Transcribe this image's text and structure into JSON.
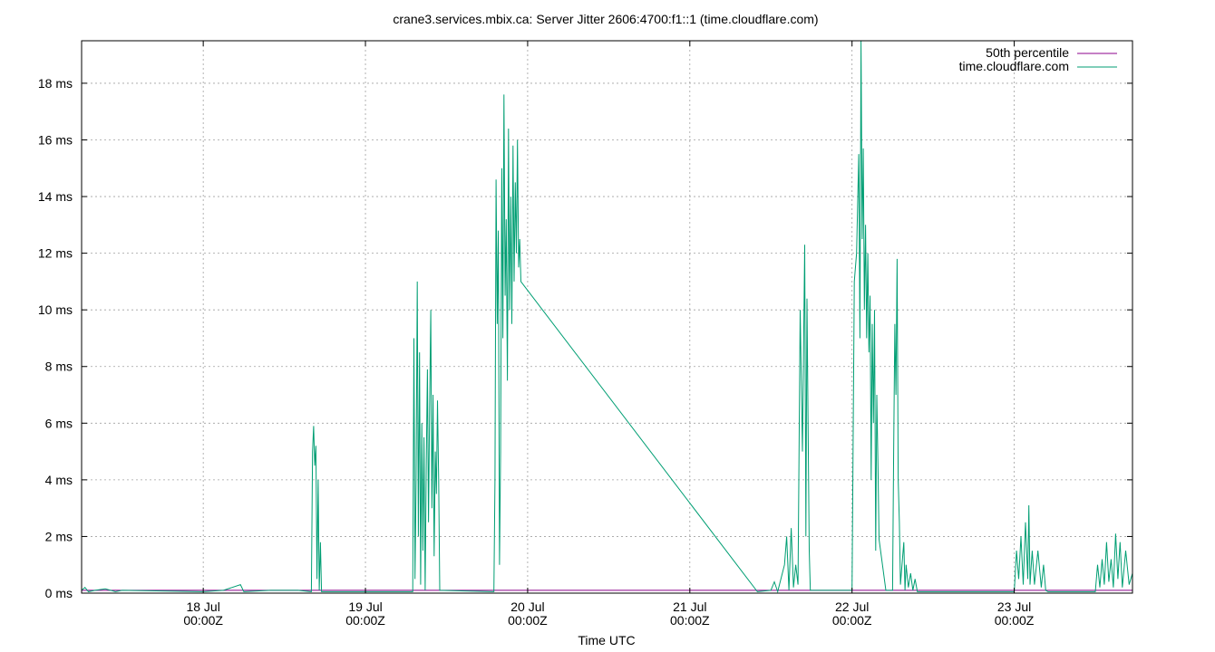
{
  "chart_data": {
    "type": "line",
    "title": "crane3.services.mbix.ca: Server Jitter 2606:4700:f1::1 (time.cloudflare.com)",
    "xlabel": "Time UTC",
    "ylabel": "",
    "y_unit": "ms",
    "ylim": [
      0,
      19.5
    ],
    "xlim": [
      "2024-07-17T06:00Z",
      "2024-07-23T17:30Z"
    ],
    "y_ticks": [
      {
        "value": 0,
        "label": "0 ms"
      },
      {
        "value": 2,
        "label": "2 ms"
      },
      {
        "value": 4,
        "label": "4 ms"
      },
      {
        "value": 6,
        "label": "6 ms"
      },
      {
        "value": 8,
        "label": "8 ms"
      },
      {
        "value": 10,
        "label": "10 ms"
      },
      {
        "value": 12,
        "label": "12 ms"
      },
      {
        "value": 14,
        "label": "14 ms"
      },
      {
        "value": 16,
        "label": "16 ms"
      },
      {
        "value": 18,
        "label": "18 ms"
      }
    ],
    "x_ticks": [
      {
        "value": "2024-07-18T00:00Z",
        "line1": "18 Jul",
        "line2": "00:00Z"
      },
      {
        "value": "2024-07-19T00:00Z",
        "line1": "19 Jul",
        "line2": "00:00Z"
      },
      {
        "value": "2024-07-20T00:00Z",
        "line1": "20 Jul",
        "line2": "00:00Z"
      },
      {
        "value": "2024-07-21T00:00Z",
        "line1": "21 Jul",
        "line2": "00:00Z"
      },
      {
        "value": "2024-07-22T00:00Z",
        "line1": "22 Jul",
        "line2": "00:00Z"
      },
      {
        "value": "2024-07-23T00:00Z",
        "line1": "23 Jul",
        "line2": "00:00Z"
      }
    ],
    "grid": true,
    "legend_position": "top-right",
    "series": [
      {
        "name": "50th percentile",
        "color": "#8b008b",
        "points": [
          [
            "2024-07-17T06:00Z",
            0.1
          ],
          [
            "2024-07-23T17:30Z",
            0.1
          ]
        ]
      },
      {
        "name": "time.cloudflare.com",
        "color": "#009e73",
        "points": [
          [
            "2024-07-17T06:00Z",
            0.1
          ],
          [
            "2024-07-17T06:30Z",
            0.2
          ],
          [
            "2024-07-17T07:00Z",
            0.05
          ],
          [
            "2024-07-17T08:00Z",
            0.1
          ],
          [
            "2024-07-17T09:30Z",
            0.15
          ],
          [
            "2024-07-17T11:00Z",
            0.05
          ],
          [
            "2024-07-17T12:00Z",
            0.1
          ],
          [
            "2024-07-18T00:00Z",
            0.05
          ],
          [
            "2024-07-18T03:00Z",
            0.1
          ],
          [
            "2024-07-18T05:30Z",
            0.3
          ],
          [
            "2024-07-18T06:00Z",
            0.05
          ],
          [
            "2024-07-18T10:00Z",
            0.1
          ],
          [
            "2024-07-18T14:00Z",
            0.1
          ],
          [
            "2024-07-18T16:00Z",
            0.05
          ],
          [
            "2024-07-18T16:10Z",
            5.0
          ],
          [
            "2024-07-18T16:20Z",
            5.9
          ],
          [
            "2024-07-18T16:30Z",
            4.5
          ],
          [
            "2024-07-18T16:40Z",
            5.2
          ],
          [
            "2024-07-18T16:50Z",
            0.5
          ],
          [
            "2024-07-18T17:00Z",
            4.0
          ],
          [
            "2024-07-18T17:10Z",
            0.1
          ],
          [
            "2024-07-18T17:20Z",
            1.8
          ],
          [
            "2024-07-18T17:30Z",
            0.05
          ],
          [
            "2024-07-19T07:00Z",
            0.05
          ],
          [
            "2024-07-19T07:10Z",
            9.0
          ],
          [
            "2024-07-19T07:20Z",
            0.5
          ],
          [
            "2024-07-19T07:30Z",
            4.0
          ],
          [
            "2024-07-19T07:40Z",
            11.0
          ],
          [
            "2024-07-19T07:50Z",
            2.0
          ],
          [
            "2024-07-19T08:00Z",
            8.5
          ],
          [
            "2024-07-19T08:10Z",
            0.3
          ],
          [
            "2024-07-19T08:20Z",
            6.0
          ],
          [
            "2024-07-19T08:30Z",
            1.5
          ],
          [
            "2024-07-19T08:40Z",
            5.5
          ],
          [
            "2024-07-19T08:50Z",
            0.1
          ],
          [
            "2024-07-19T09:00Z",
            4.5
          ],
          [
            "2024-07-19T09:10Z",
            7.9
          ],
          [
            "2024-07-19T09:20Z",
            2.5
          ],
          [
            "2024-07-19T09:30Z",
            6.5
          ],
          [
            "2024-07-19T09:40Z",
            10.0
          ],
          [
            "2024-07-19T09:50Z",
            3.0
          ],
          [
            "2024-07-19T10:00Z",
            7.0
          ],
          [
            "2024-07-19T10:10Z",
            1.3
          ],
          [
            "2024-07-19T10:20Z",
            5.0
          ],
          [
            "2024-07-19T10:30Z",
            3.5
          ],
          [
            "2024-07-19T10:40Z",
            6.8
          ],
          [
            "2024-07-19T10:50Z",
            4.0
          ],
          [
            "2024-07-19T11:00Z",
            0.1
          ],
          [
            "2024-07-19T19:00Z",
            0.05
          ],
          [
            "2024-07-19T19:10Z",
            4.0
          ],
          [
            "2024-07-19T19:20Z",
            14.6
          ],
          [
            "2024-07-19T19:30Z",
            9.5
          ],
          [
            "2024-07-19T19:40Z",
            12.8
          ],
          [
            "2024-07-19T19:50Z",
            1.0
          ],
          [
            "2024-07-19T20:00Z",
            5.0
          ],
          [
            "2024-07-19T20:10Z",
            15.0
          ],
          [
            "2024-07-19T20:20Z",
            9.0
          ],
          [
            "2024-07-19T20:30Z",
            17.6
          ],
          [
            "2024-07-19T20:40Z",
            10.5
          ],
          [
            "2024-07-19T20:50Z",
            13.2
          ],
          [
            "2024-07-19T21:00Z",
            7.5
          ],
          [
            "2024-07-19T21:10Z",
            16.4
          ],
          [
            "2024-07-19T21:20Z",
            10.0
          ],
          [
            "2024-07-19T21:30Z",
            14.0
          ],
          [
            "2024-07-19T21:40Z",
            9.5
          ],
          [
            "2024-07-19T21:50Z",
            15.8
          ],
          [
            "2024-07-19T22:00Z",
            11.0
          ],
          [
            "2024-07-19T22:10Z",
            14.5
          ],
          [
            "2024-07-19T22:20Z",
            12.0
          ],
          [
            "2024-07-19T22:30Z",
            16.0
          ],
          [
            "2024-07-19T22:40Z",
            11.5
          ],
          [
            "2024-07-19T22:50Z",
            12.5
          ],
          [
            "2024-07-19T23:00Z",
            11.0
          ],
          [
            "2024-07-21T10:00Z",
            0.05
          ],
          [
            "2024-07-21T12:00Z",
            0.1
          ],
          [
            "2024-07-21T12:30Z",
            0.4
          ],
          [
            "2024-07-21T13:00Z",
            0.05
          ],
          [
            "2024-07-21T14:00Z",
            1.0
          ],
          [
            "2024-07-21T14:20Z",
            2.0
          ],
          [
            "2024-07-21T14:40Z",
            0.1
          ],
          [
            "2024-07-21T15:00Z",
            2.3
          ],
          [
            "2024-07-21T15:20Z",
            0.2
          ],
          [
            "2024-07-21T15:40Z",
            1.0
          ],
          [
            "2024-07-21T16:00Z",
            0.3
          ],
          [
            "2024-07-21T16:20Z",
            10.0
          ],
          [
            "2024-07-21T16:40Z",
            5.0
          ],
          [
            "2024-07-21T17:00Z",
            12.3
          ],
          [
            "2024-07-21T17:10Z",
            2.0
          ],
          [
            "2024-07-21T17:20Z",
            10.4
          ],
          [
            "2024-07-21T17:30Z",
            6.0
          ],
          [
            "2024-07-21T17:40Z",
            1.5
          ],
          [
            "2024-07-21T17:50Z",
            0.1
          ],
          [
            "2024-07-22T00:00Z",
            0.1
          ],
          [
            "2024-07-22T00:20Z",
            11.0
          ],
          [
            "2024-07-22T00:40Z",
            12.0
          ],
          [
            "2024-07-22T01:00Z",
            15.5
          ],
          [
            "2024-07-22T01:10Z",
            9.0
          ],
          [
            "2024-07-22T01:20Z",
            19.5
          ],
          [
            "2024-07-22T01:30Z",
            12.5
          ],
          [
            "2024-07-22T01:40Z",
            15.7
          ],
          [
            "2024-07-22T01:50Z",
            10.0
          ],
          [
            "2024-07-22T02:00Z",
            13.0
          ],
          [
            "2024-07-22T02:10Z",
            9.0
          ],
          [
            "2024-07-22T02:20Z",
            12.0
          ],
          [
            "2024-07-22T02:30Z",
            8.5
          ],
          [
            "2024-07-22T02:40Z",
            10.5
          ],
          [
            "2024-07-22T02:50Z",
            4.0
          ],
          [
            "2024-07-22T03:00Z",
            9.5
          ],
          [
            "2024-07-22T03:10Z",
            6.0
          ],
          [
            "2024-07-22T03:20Z",
            10.0
          ],
          [
            "2024-07-22T03:30Z",
            1.5
          ],
          [
            "2024-07-22T03:40Z",
            7.0
          ],
          [
            "2024-07-22T03:50Z",
            4.5
          ],
          [
            "2024-07-22T04:00Z",
            1.9
          ],
          [
            "2024-07-22T05:00Z",
            0.1
          ],
          [
            "2024-07-22T06:00Z",
            0.1
          ],
          [
            "2024-07-22T06:10Z",
            5.0
          ],
          [
            "2024-07-22T06:20Z",
            9.5
          ],
          [
            "2024-07-22T06:30Z",
            7.0
          ],
          [
            "2024-07-22T06:40Z",
            11.8
          ],
          [
            "2024-07-22T06:50Z",
            4.0
          ],
          [
            "2024-07-22T07:00Z",
            2.5
          ],
          [
            "2024-07-22T07:10Z",
            0.3
          ],
          [
            "2024-07-22T07:20Z",
            0.8
          ],
          [
            "2024-07-22T07:40Z",
            1.8
          ],
          [
            "2024-07-22T07:50Z",
            0.1
          ],
          [
            "2024-07-22T08:00Z",
            1.0
          ],
          [
            "2024-07-22T08:20Z",
            0.2
          ],
          [
            "2024-07-22T08:40Z",
            0.7
          ],
          [
            "2024-07-22T09:00Z",
            0.1
          ],
          [
            "2024-07-22T09:20Z",
            0.5
          ],
          [
            "2024-07-22T09:40Z",
            0.05
          ],
          [
            "2024-07-23T00:00Z",
            0.05
          ],
          [
            "2024-07-23T00:20Z",
            1.5
          ],
          [
            "2024-07-23T00:40Z",
            0.5
          ],
          [
            "2024-07-23T01:00Z",
            2.0
          ],
          [
            "2024-07-23T01:20Z",
            0.3
          ],
          [
            "2024-07-23T01:40Z",
            2.5
          ],
          [
            "2024-07-23T02:00Z",
            0.5
          ],
          [
            "2024-07-23T02:10Z",
            3.1
          ],
          [
            "2024-07-23T02:20Z",
            0.3
          ],
          [
            "2024-07-23T02:40Z",
            1.5
          ],
          [
            "2024-07-23T03:00Z",
            0.3
          ],
          [
            "2024-07-23T03:30Z",
            1.5
          ],
          [
            "2024-07-23T04:00Z",
            0.2
          ],
          [
            "2024-07-23T04:20Z",
            1.0
          ],
          [
            "2024-07-23T04:40Z",
            0.1
          ],
          [
            "2024-07-23T05:00Z",
            0.05
          ],
          [
            "2024-07-23T12:00Z",
            0.05
          ],
          [
            "2024-07-23T12:20Z",
            1.0
          ],
          [
            "2024-07-23T12:40Z",
            0.2
          ],
          [
            "2024-07-23T13:00Z",
            1.2
          ],
          [
            "2024-07-23T13:20Z",
            0.3
          ],
          [
            "2024-07-23T13:40Z",
            1.8
          ],
          [
            "2024-07-23T14:00Z",
            0.4
          ],
          [
            "2024-07-23T14:20Z",
            1.2
          ],
          [
            "2024-07-23T14:40Z",
            0.2
          ],
          [
            "2024-07-23T15:00Z",
            2.1
          ],
          [
            "2024-07-23T15:20Z",
            0.5
          ],
          [
            "2024-07-23T15:40Z",
            1.8
          ],
          [
            "2024-07-23T16:00Z",
            0.2
          ],
          [
            "2024-07-23T16:30Z",
            1.5
          ],
          [
            "2024-07-23T17:00Z",
            0.3
          ],
          [
            "2024-07-23T17:30Z",
            0.7
          ]
        ]
      }
    ]
  }
}
